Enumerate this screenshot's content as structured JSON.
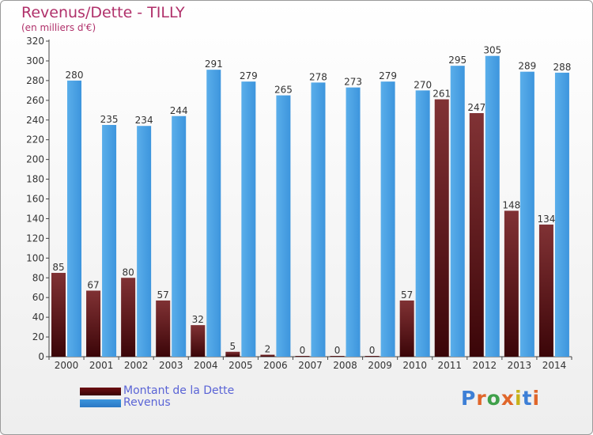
{
  "header": {
    "title": "Revenus/Dette - TILLY",
    "subtitle": "(en milliers d'€)"
  },
  "colors": {
    "debt": "#6b0f12",
    "revenue": "#3d95dd",
    "title": "#b0306a",
    "legend_text": "#5a64d6"
  },
  "legend": {
    "items": [
      {
        "label": "Montant de la Dette",
        "color": "#6b0f12"
      },
      {
        "label": "Revenus",
        "color": "#3d95dd"
      }
    ]
  },
  "logo": {
    "text": "Proxiti"
  },
  "chart_data": {
    "type": "bar",
    "categories": [
      "2000",
      "2001",
      "2002",
      "2003",
      "2004",
      "2005",
      "2006",
      "2007",
      "2008",
      "2009",
      "2010",
      "2011",
      "2012",
      "2013",
      "2014"
    ],
    "series": [
      {
        "name": "Montant de la Dette",
        "values": [
          85,
          67,
          80,
          57,
          32,
          5,
          2,
          0,
          0,
          0,
          57,
          261,
          247,
          148,
          134
        ]
      },
      {
        "name": "Revenus",
        "values": [
          280,
          235,
          234,
          244,
          291,
          279,
          265,
          278,
          273,
          279,
          270,
          295,
          305,
          289,
          288
        ]
      }
    ],
    "ylim": [
      0,
      320
    ],
    "yticks": [
      0,
      20,
      40,
      60,
      80,
      100,
      120,
      140,
      160,
      180,
      200,
      220,
      240,
      260,
      280,
      300,
      320
    ],
    "grid": false,
    "legend_position": "bottom-left"
  }
}
